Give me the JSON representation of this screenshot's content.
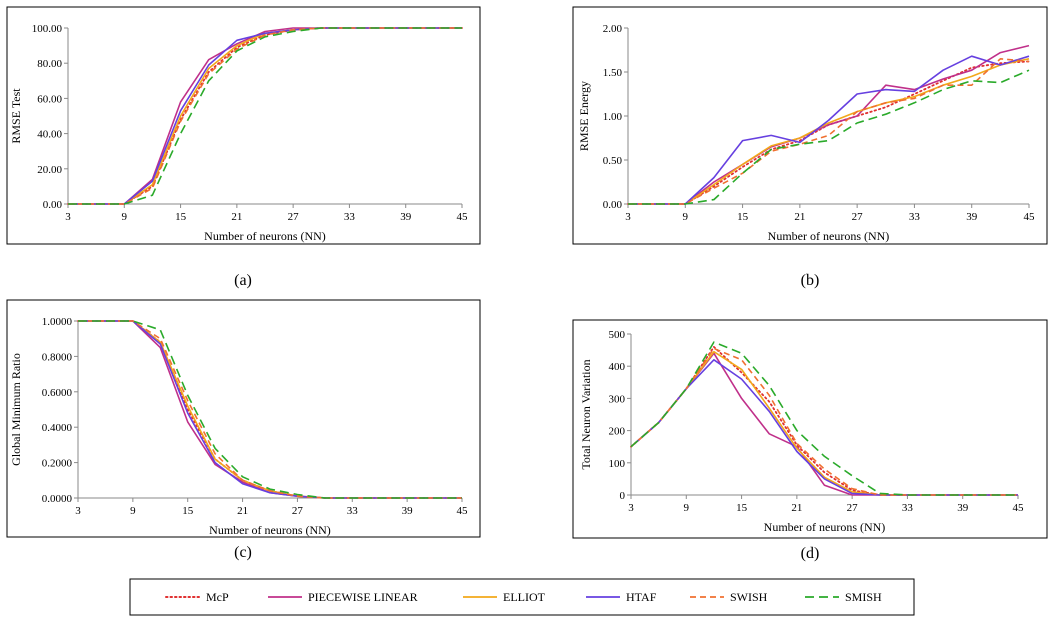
{
  "colors": {
    "McP": "#e03030",
    "PIECEWISE LINEAR": "#c0308a",
    "ELLIOT": "#f2a81a",
    "HTAF": "#6640e0",
    "SWISH": "#f07030",
    "SMISH": "#2aaa2a"
  },
  "legend": {
    "items": [
      {
        "label": "McP",
        "key": "McP"
      },
      {
        "label": "PIECEWISE LINEAR",
        "key": "PIECEWISE LINEAR"
      },
      {
        "label": "ELLIOT",
        "key": "ELLIOT"
      },
      {
        "label": "HTAF",
        "key": "HTAF"
      },
      {
        "label": "SWISH",
        "key": "SWISH"
      },
      {
        "label": "SMISH",
        "key": "SMISH"
      }
    ]
  },
  "chart_data": [
    {
      "id": "a",
      "caption": "(a)",
      "type": "line",
      "xlabel": "Number of neurons (NN)",
      "ylabel": "RMSE Test",
      "xlim": [
        3,
        45
      ],
      "ylim": [
        0,
        100
      ],
      "xticks": [
        3,
        9,
        15,
        21,
        27,
        33,
        39,
        45
      ],
      "yticks": [
        0,
        20,
        40,
        60,
        80,
        100
      ],
      "ytick_labels": [
        "0.00",
        "20.00",
        "40.00",
        "60.00",
        "80.00",
        "100.00"
      ],
      "x": [
        3,
        6,
        9,
        12,
        15,
        18,
        21,
        24,
        27,
        30,
        33,
        36,
        39,
        42,
        45
      ],
      "series": [
        {
          "name": "McP",
          "values": [
            0,
            0,
            0,
            10,
            48,
            75,
            89,
            96,
            99,
            100,
            100,
            100,
            100,
            100,
            100
          ]
        },
        {
          "name": "PIECEWISE LINEAR",
          "values": [
            0,
            0,
            0,
            14,
            58,
            82,
            91,
            98,
            100,
            100,
            100,
            100,
            100,
            100,
            100
          ]
        },
        {
          "name": "ELLIOT",
          "values": [
            0,
            0,
            0,
            11,
            50,
            77,
            90,
            97,
            99,
            100,
            100,
            100,
            100,
            100,
            100
          ]
        },
        {
          "name": "HTAF",
          "values": [
            0,
            0,
            0,
            13,
            53,
            79,
            93,
            97,
            99,
            100,
            100,
            100,
            100,
            100,
            100
          ]
        },
        {
          "name": "SWISH",
          "values": [
            0,
            0,
            0,
            9,
            47,
            74,
            88,
            96,
            99,
            100,
            100,
            100,
            100,
            100,
            100
          ]
        },
        {
          "name": "SMISH",
          "values": [
            0,
            0,
            0,
            5,
            40,
            70,
            87,
            95,
            98,
            100,
            100,
            100,
            100,
            100,
            100
          ]
        }
      ]
    },
    {
      "id": "b",
      "caption": "(b)",
      "type": "line",
      "xlabel": "Number of neurons (NN)",
      "ylabel": "RMSE Energy",
      "xlim": [
        3,
        45
      ],
      "ylim": [
        0,
        2
      ],
      "xticks": [
        3,
        9,
        15,
        21,
        27,
        33,
        39,
        45
      ],
      "yticks": [
        0,
        0.5,
        1,
        1.5,
        2
      ],
      "ytick_labels": [
        "0.00",
        "0.50",
        "1.00",
        "1.50",
        "2.00"
      ],
      "x": [
        3,
        6,
        9,
        12,
        15,
        18,
        21,
        24,
        27,
        30,
        33,
        36,
        39,
        42,
        45
      ],
      "series": [
        {
          "name": "McP",
          "values": [
            0,
            0,
            0,
            0.2,
            0.42,
            0.62,
            0.72,
            0.9,
            1.0,
            1.1,
            1.25,
            1.4,
            1.55,
            1.6,
            1.62
          ]
        },
        {
          "name": "PIECEWISE LINEAR",
          "values": [
            0,
            0,
            0,
            0.25,
            0.45,
            0.65,
            0.75,
            0.9,
            1.0,
            1.35,
            1.3,
            1.42,
            1.52,
            1.72,
            1.8
          ]
        },
        {
          "name": "ELLIOT",
          "values": [
            0,
            0,
            0,
            0.22,
            0.45,
            0.66,
            0.75,
            0.92,
            1.05,
            1.15,
            1.22,
            1.35,
            1.45,
            1.58,
            1.65
          ]
        },
        {
          "name": "HTAF",
          "values": [
            0,
            0,
            0,
            0.3,
            0.72,
            0.78,
            0.7,
            0.95,
            1.25,
            1.3,
            1.28,
            1.52,
            1.68,
            1.58,
            1.68
          ]
        },
        {
          "name": "SWISH",
          "values": [
            0,
            0,
            0,
            0.18,
            0.35,
            0.6,
            0.68,
            0.78,
            1.05,
            1.15,
            1.2,
            1.35,
            1.35,
            1.65,
            1.62
          ]
        },
        {
          "name": "SMISH",
          "values": [
            0,
            0,
            0,
            0.05,
            0.35,
            0.62,
            0.68,
            0.72,
            0.92,
            1.02,
            1.15,
            1.3,
            1.4,
            1.38,
            1.52
          ]
        }
      ]
    },
    {
      "id": "c",
      "caption": "(c)",
      "type": "line",
      "xlabel": "Number of neurons (NN)",
      "ylabel": "Global Minimum Ratio",
      "xlim": [
        3,
        45
      ],
      "ylim": [
        0,
        1
      ],
      "xticks": [
        3,
        9,
        15,
        21,
        27,
        33,
        39,
        45
      ],
      "yticks": [
        0,
        0.2,
        0.4,
        0.6,
        0.8,
        1
      ],
      "ytick_labels": [
        "0.0000",
        "0.2000",
        "0.4000",
        "0.6000",
        "0.8000",
        "1.0000"
      ],
      "x": [
        3,
        6,
        9,
        12,
        15,
        18,
        21,
        24,
        27,
        30,
        33,
        36,
        39,
        42,
        45
      ],
      "series": [
        {
          "name": "McP",
          "values": [
            1,
            1,
            1,
            0.88,
            0.5,
            0.22,
            0.1,
            0.04,
            0.01,
            0,
            0,
            0,
            0,
            0,
            0
          ]
        },
        {
          "name": "PIECEWISE LINEAR",
          "values": [
            1,
            1,
            1,
            0.85,
            0.43,
            0.19,
            0.09,
            0.03,
            0.01,
            0,
            0,
            0,
            0,
            0,
            0
          ]
        },
        {
          "name": "ELLIOT",
          "values": [
            1,
            1,
            1,
            0.88,
            0.52,
            0.22,
            0.1,
            0.04,
            0.01,
            0,
            0,
            0,
            0,
            0,
            0
          ]
        },
        {
          "name": "HTAF",
          "values": [
            1,
            1,
            1,
            0.87,
            0.48,
            0.2,
            0.08,
            0.03,
            0.01,
            0,
            0,
            0,
            0,
            0,
            0
          ]
        },
        {
          "name": "SWISH",
          "values": [
            1,
            1,
            1,
            0.9,
            0.55,
            0.25,
            0.1,
            0.04,
            0.01,
            0,
            0,
            0,
            0,
            0,
            0
          ]
        },
        {
          "name": "SMISH",
          "values": [
            1,
            1,
            1,
            0.95,
            0.58,
            0.28,
            0.12,
            0.05,
            0.02,
            0,
            0,
            0,
            0,
            0,
            0
          ]
        }
      ]
    },
    {
      "id": "d",
      "caption": "(d)",
      "type": "line",
      "xlabel": "Number of neurons (NN)",
      "ylabel": "Total Neuron Variation",
      "xlim": [
        3,
        45
      ],
      "ylim": [
        0,
        500
      ],
      "xticks": [
        3,
        9,
        15,
        21,
        27,
        33,
        39,
        45
      ],
      "yticks": [
        0,
        100,
        200,
        300,
        400,
        500
      ],
      "ytick_labels": [
        "0",
        "100",
        "200",
        "300",
        "400",
        "500"
      ],
      "x": [
        3,
        6,
        9,
        12,
        15,
        18,
        21,
        24,
        27,
        30,
        33,
        36,
        39,
        42,
        45
      ],
      "series": [
        {
          "name": "McP",
          "values": [
            150,
            225,
            330,
            460,
            380,
            290,
            155,
            70,
            15,
            0,
            0,
            0,
            0,
            0,
            0
          ]
        },
        {
          "name": "PIECEWISE LINEAR",
          "values": [
            150,
            225,
            330,
            440,
            300,
            190,
            150,
            30,
            0,
            0,
            0,
            0,
            0,
            0,
            0
          ]
        },
        {
          "name": "ELLIOT",
          "values": [
            150,
            225,
            330,
            445,
            390,
            270,
            145,
            55,
            10,
            0,
            0,
            0,
            0,
            0,
            0
          ]
        },
        {
          "name": "HTAF",
          "values": [
            150,
            225,
            330,
            420,
            360,
            260,
            135,
            50,
            5,
            0,
            0,
            0,
            0,
            0,
            0
          ]
        },
        {
          "name": "SWISH",
          "values": [
            150,
            225,
            330,
            455,
            420,
            310,
            160,
            80,
            20,
            0,
            0,
            0,
            0,
            0,
            0
          ]
        },
        {
          "name": "SMISH",
          "values": [
            150,
            225,
            330,
            475,
            440,
            340,
            200,
            120,
            60,
            5,
            0,
            0,
            0,
            0,
            0
          ]
        }
      ]
    }
  ]
}
